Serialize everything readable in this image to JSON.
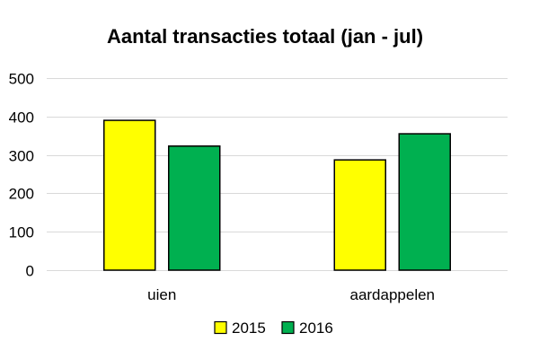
{
  "chart_data": {
    "type": "bar",
    "title": "Aantal transacties totaal (jan - jul)",
    "xlabel": "",
    "ylabel": "",
    "categories": [
      "uien",
      "aardappelen"
    ],
    "series": [
      {
        "name": "2015",
        "values": [
          390,
          287
        ],
        "color": "#ffff00"
      },
      {
        "name": "2016",
        "values": [
          323,
          355
        ],
        "color": "#00b050"
      }
    ],
    "ylim": [
      0,
      500
    ],
    "yticks": [
      0,
      100,
      200,
      300,
      400,
      500
    ],
    "grid": true,
    "legend_position": "bottom",
    "bar_outline_color": "#000000",
    "grid_color": "#d9d9d9"
  }
}
